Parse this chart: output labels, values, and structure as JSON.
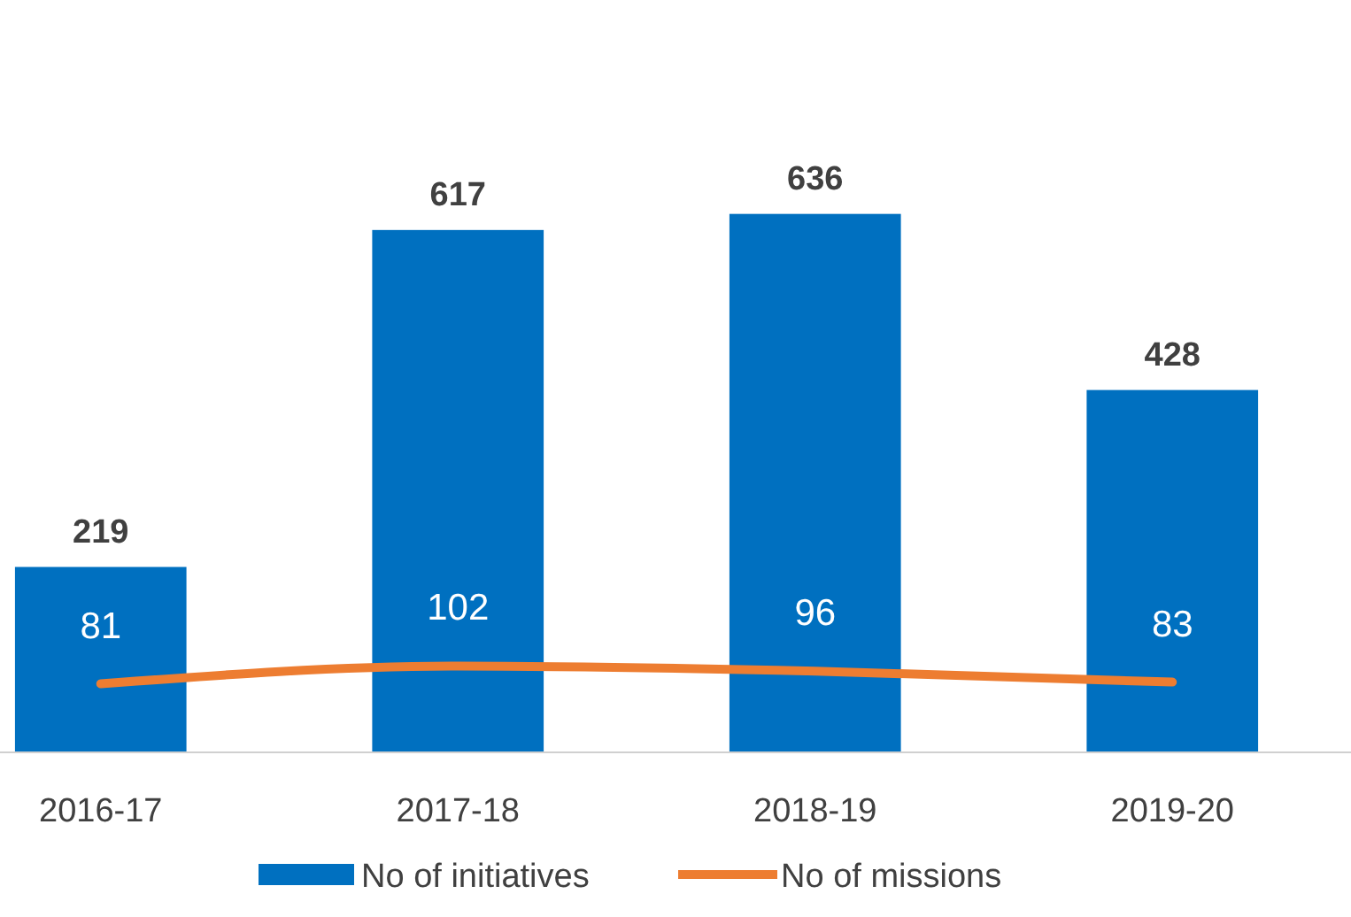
{
  "chart_data": {
    "type": "bar",
    "categories": [
      "2016-17",
      "2017-18",
      "2018-19",
      "2019-20"
    ],
    "series": [
      {
        "name": "No of initiatives",
        "color": "#0070c0",
        "values": [
          219,
          617,
          636,
          428
        ]
      },
      {
        "name": "No of missions",
        "type": "line",
        "color": "#ed7d31",
        "values": [
          81,
          102,
          96,
          83
        ]
      }
    ],
    "data_labels": true,
    "legend": "bottom",
    "marker": "none",
    "line_style": "solid"
  }
}
